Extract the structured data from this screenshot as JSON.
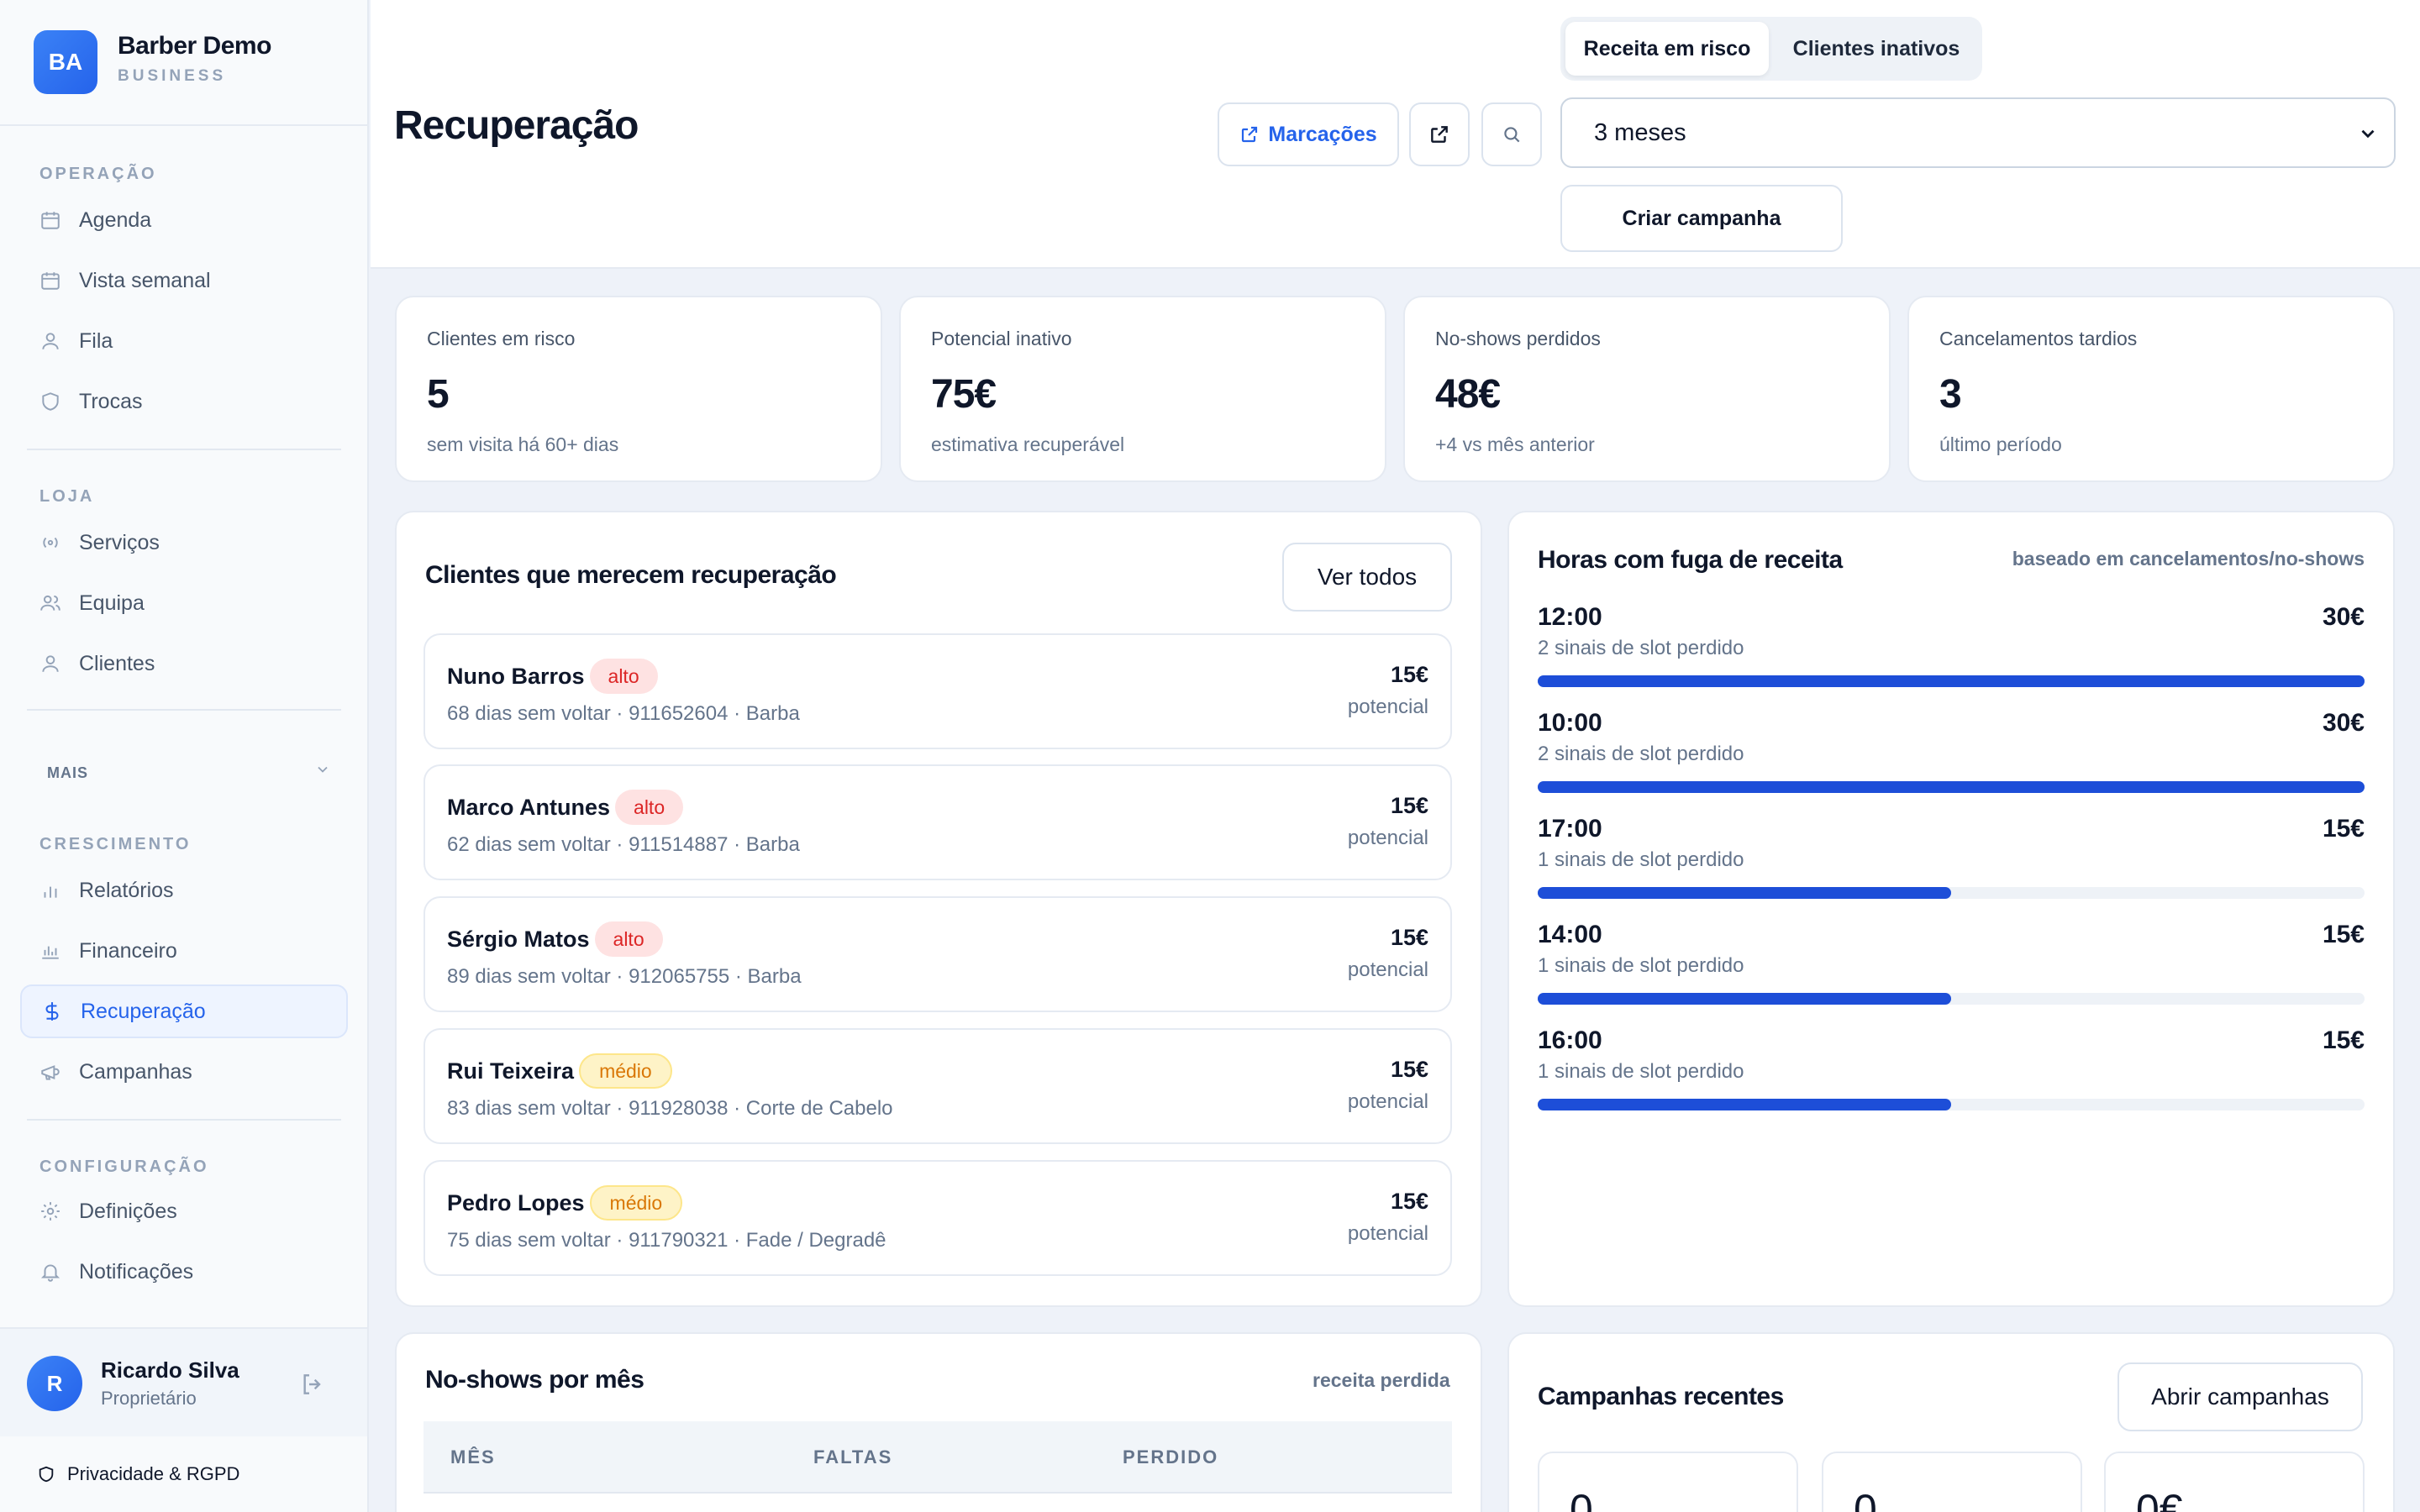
{
  "brand": {
    "initials": "BA",
    "name": "Barber Demo",
    "tier": "BUSINESS"
  },
  "nav": {
    "operacao_label": "OPERAÇÃO",
    "operacao": [
      "Agenda",
      "Vista semanal",
      "Fila",
      "Trocas"
    ],
    "loja_label": "LOJA",
    "loja": [
      "Serviços",
      "Equipa",
      "Clientes"
    ],
    "more_label": "MAIS",
    "crescimento_label": "CRESCIMENTO",
    "crescimento": [
      "Relatórios",
      "Financeiro",
      "Recuperação",
      "Campanhas"
    ],
    "config_label": "CONFIGURAÇÃO",
    "config": [
      "Definições",
      "Notificações"
    ]
  },
  "user": {
    "initial": "R",
    "name": "Ricardo Silva",
    "role": "Proprietário"
  },
  "privacy_label": "Privacidade & RGPD",
  "header": {
    "title": "Recuperação",
    "marcacoes_label": "Marcações",
    "tabs": [
      "Receita em risco",
      "Clientes inativos"
    ],
    "period": "3 meses",
    "create_campaign": "Criar campanha"
  },
  "stats": [
    {
      "label": "Clientes em risco",
      "value": "5",
      "sub": "sem visita há 60+ dias"
    },
    {
      "label": "Potencial inativo",
      "value": "75€",
      "sub": "estimativa recuperável"
    },
    {
      "label": "No-shows perdidos",
      "value": "48€",
      "sub": "+4 vs mês anterior"
    },
    {
      "label": "Cancelamentos tardios",
      "value": "3",
      "sub": "último período"
    }
  ],
  "clients_panel": {
    "title": "Clientes que merecem recuperação",
    "view_all": "Ver todos",
    "clients": [
      {
        "name": "Nuno Barros",
        "badge": "alto",
        "meta": "68 dias sem voltar · 911652604 · Barba",
        "value": "15€",
        "value_label": "potencial"
      },
      {
        "name": "Marco Antunes",
        "badge": "alto",
        "meta": "62 dias sem voltar · 911514887 · Barba",
        "value": "15€",
        "value_label": "potencial"
      },
      {
        "name": "Sérgio Matos",
        "badge": "alto",
        "meta": "89 dias sem voltar · 912065755 · Barba",
        "value": "15€",
        "value_label": "potencial"
      },
      {
        "name": "Rui Teixeira",
        "badge": "médio",
        "meta": "83 dias sem voltar · 911928038 · Corte de Cabelo",
        "value": "15€",
        "value_label": "potencial"
      },
      {
        "name": "Pedro Lopes",
        "badge": "médio",
        "meta": "75 dias sem voltar · 911790321 · Fade / Degradê",
        "value": "15€",
        "value_label": "potencial"
      }
    ]
  },
  "hours_panel": {
    "title": "Horas com fuga de receita",
    "note": "baseado em cancelamentos/no-shows",
    "hours": [
      {
        "time": "12:00",
        "value": "30€",
        "sub": "2 sinais de slot perdido",
        "fill": 1.0
      },
      {
        "time": "10:00",
        "value": "30€",
        "sub": "2 sinais de slot perdido",
        "fill": 1.0
      },
      {
        "time": "17:00",
        "value": "15€",
        "sub": "1 sinais de slot perdido",
        "fill": 0.5
      },
      {
        "time": "14:00",
        "value": "15€",
        "sub": "1 sinais de slot perdido",
        "fill": 0.5
      },
      {
        "time": "16:00",
        "value": "15€",
        "sub": "1 sinais de slot perdido",
        "fill": 0.5
      }
    ]
  },
  "noshows_panel": {
    "title": "No-shows por mês",
    "note": "receita perdida",
    "columns": [
      "MÊS",
      "FALTAS",
      "PERDIDO"
    ]
  },
  "campaigns_panel": {
    "title": "Campanhas recentes",
    "open": "Abrir campanhas",
    "values": [
      "0",
      "0",
      "0€"
    ]
  }
}
